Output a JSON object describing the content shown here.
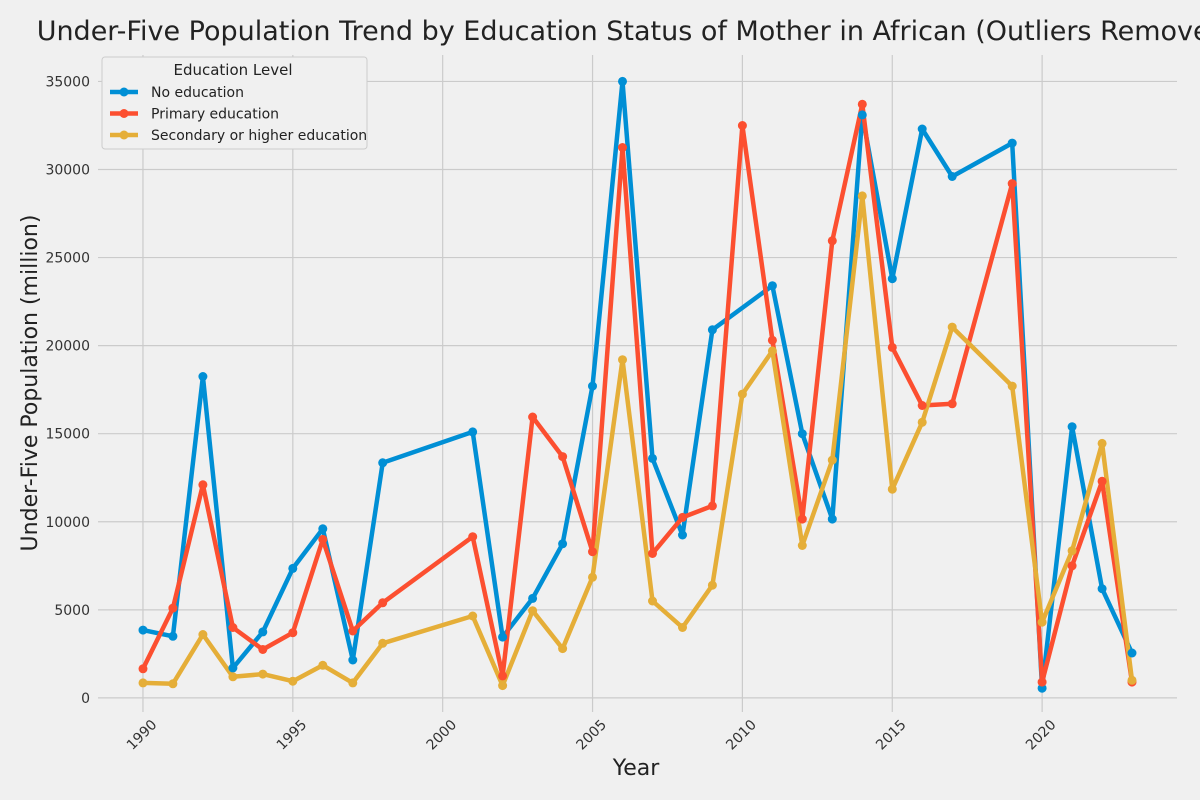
{
  "chart_data": {
    "type": "line",
    "title": "Under-Five Population Trend by Education Status of Mother in African (Outliers Removed)",
    "xlabel": "Year",
    "ylabel": "Under-Five Population (million)",
    "xlim": [
      1988.5,
      2024.5
    ],
    "ylim": [
      -800,
      36500
    ],
    "xticks": [
      1990,
      1995,
      2000,
      2005,
      2010,
      2015,
      2020
    ],
    "yticks": [
      0,
      5000,
      10000,
      15000,
      20000,
      25000,
      30000,
      35000
    ],
    "grid": true,
    "legend": {
      "title": "Education Level",
      "placement": "top-left"
    },
    "series": [
      {
        "name": "No education",
        "color": "#008fd5",
        "points": [
          [
            1990,
            3850
          ],
          [
            1991,
            3500
          ],
          [
            1992,
            18250
          ],
          [
            1993,
            1700
          ],
          [
            1994,
            3750
          ],
          [
            1995,
            7350
          ],
          [
            1996,
            9600
          ],
          [
            1997,
            2150
          ],
          [
            1998,
            13350
          ],
          [
            2001,
            15100
          ],
          [
            2002,
            3450
          ],
          [
            2003,
            5650
          ],
          [
            2004,
            8750
          ],
          [
            2005,
            17700
          ],
          [
            2006,
            35000
          ],
          [
            2007,
            13600
          ],
          [
            2008,
            9250
          ],
          [
            2009,
            20900
          ],
          [
            2011,
            23400
          ],
          [
            2012,
            15000
          ],
          [
            2013,
            10150
          ],
          [
            2014,
            33100
          ],
          [
            2015,
            23800
          ],
          [
            2016,
            32300
          ],
          [
            2017,
            29600
          ],
          [
            2019,
            31500
          ],
          [
            2020,
            550
          ],
          [
            2021,
            15400
          ],
          [
            2022,
            6200
          ],
          [
            2023,
            2550
          ]
        ]
      },
      {
        "name": "Primary education",
        "color": "#fc4f30",
        "points": [
          [
            1990,
            1650
          ],
          [
            1991,
            5100
          ],
          [
            1992,
            12100
          ],
          [
            1993,
            4000
          ],
          [
            1994,
            2750
          ],
          [
            1995,
            3700
          ],
          [
            1996,
            9000
          ],
          [
            1997,
            3800
          ],
          [
            1998,
            5400
          ],
          [
            2001,
            9150
          ],
          [
            2002,
            1250
          ],
          [
            2003,
            15950
          ],
          [
            2004,
            13700
          ],
          [
            2005,
            8300
          ],
          [
            2006,
            31250
          ],
          [
            2007,
            8200
          ],
          [
            2008,
            10250
          ],
          [
            2009,
            10900
          ],
          [
            2010,
            32500
          ],
          [
            2011,
            20300
          ],
          [
            2012,
            10150
          ],
          [
            2013,
            25950
          ],
          [
            2014,
            33700
          ],
          [
            2015,
            19900
          ],
          [
            2016,
            16600
          ],
          [
            2017,
            16700
          ],
          [
            2019,
            29200
          ],
          [
            2020,
            900
          ],
          [
            2021,
            7500
          ],
          [
            2022,
            12300
          ],
          [
            2023,
            900
          ]
        ]
      },
      {
        "name": "Secondary or higher education",
        "color": "#e5ae38",
        "points": [
          [
            1990,
            850
          ],
          [
            1991,
            800
          ],
          [
            1992,
            3600
          ],
          [
            1993,
            1200
          ],
          [
            1994,
            1350
          ],
          [
            1995,
            950
          ],
          [
            1996,
            1850
          ],
          [
            1997,
            850
          ],
          [
            1998,
            3100
          ],
          [
            2001,
            4650
          ],
          [
            2002,
            700
          ],
          [
            2003,
            4950
          ],
          [
            2004,
            2800
          ],
          [
            2005,
            6850
          ],
          [
            2006,
            19200
          ],
          [
            2007,
            5500
          ],
          [
            2008,
            4000
          ],
          [
            2009,
            6400
          ],
          [
            2010,
            17250
          ],
          [
            2011,
            19700
          ],
          [
            2012,
            8650
          ],
          [
            2013,
            13500
          ],
          [
            2014,
            28500
          ],
          [
            2015,
            11850
          ],
          [
            2016,
            15650
          ],
          [
            2017,
            21050
          ],
          [
            2019,
            17700
          ],
          [
            2020,
            4300
          ],
          [
            2021,
            8350
          ],
          [
            2022,
            14450
          ],
          [
            2023,
            1000
          ]
        ]
      }
    ]
  }
}
